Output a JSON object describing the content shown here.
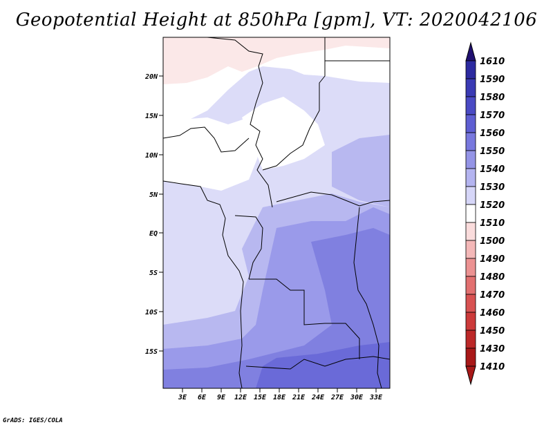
{
  "title": "Geopotential Height at 850hPa [gpm], VT: 2020042106",
  "credit": "GrADS: IGES/COLA",
  "map": {
    "lat_labels": [
      "20N",
      "15N",
      "10N",
      "5N",
      "EQ",
      "5S",
      "10S",
      "15S"
    ],
    "lon_labels": [
      "3E",
      "6E",
      "9E",
      "12E",
      "15E",
      "18E",
      "21E",
      "24E",
      "27E",
      "30E",
      "33E"
    ]
  },
  "colorbar": {
    "levels": [
      "1610",
      "1590",
      "1580",
      "1570",
      "1560",
      "1550",
      "1540",
      "1530",
      "1520",
      "1510",
      "1500",
      "1490",
      "1480",
      "1470",
      "1460",
      "1450",
      "1430",
      "1410"
    ],
    "colors": [
      "#201070",
      "#2c2aa0",
      "#3a3ab4",
      "#4a4ac4",
      "#5e5ed2",
      "#7878de",
      "#9494e6",
      "#b4b4f0",
      "#d6d6f8",
      "#ffffff",
      "#fadcdc",
      "#f4b8b8",
      "#ec9292",
      "#e27070",
      "#d85252",
      "#cc3a3a",
      "#bc2828",
      "#a81818"
    ]
  }
}
